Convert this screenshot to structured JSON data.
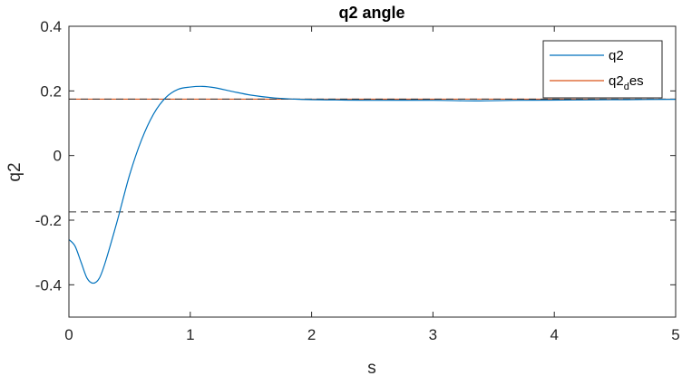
{
  "chart_data": {
    "type": "line",
    "title": "q2 angle",
    "xlabel": "s",
    "ylabel": "q2",
    "xlim": [
      0,
      5
    ],
    "ylim": [
      -0.5,
      0.4
    ],
    "xticks": [
      "0",
      "1",
      "2",
      "3",
      "4",
      "5"
    ],
    "yticks": [
      "-0.4",
      "-0.2",
      "0",
      "0.2",
      "0.4"
    ],
    "grid": false,
    "legend_placement": "top-right",
    "series": [
      {
        "name": "q2",
        "color": "#0072BD",
        "x": [
          0,
          0.05,
          0.1,
          0.15,
          0.2,
          0.25,
          0.3,
          0.4,
          0.5,
          0.6,
          0.7,
          0.8,
          0.9,
          1.0,
          1.1,
          1.2,
          1.35,
          1.5,
          1.7,
          1.9,
          2.2,
          2.5,
          3.0,
          3.35,
          3.7,
          4.2,
          4.6,
          5.0
        ],
        "y": [
          -0.26,
          -0.28,
          -0.33,
          -0.38,
          -0.395,
          -0.38,
          -0.33,
          -0.2,
          -0.06,
          0.05,
          0.13,
          0.18,
          0.205,
          0.212,
          0.214,
          0.21,
          0.198,
          0.187,
          0.178,
          0.174,
          0.172,
          0.171,
          0.171,
          0.169,
          0.171,
          0.172,
          0.173,
          0.174
        ]
      },
      {
        "name_parts": {
          "base": "q2",
          "sub": "d",
          "rest": "es"
        },
        "color": "#D95319",
        "x": [
          0,
          5
        ],
        "y": [
          0.1745,
          0.1745
        ]
      }
    ],
    "reference_lines": [
      {
        "y": 0.1745,
        "color": "#333333",
        "style": "dashed"
      },
      {
        "y": -0.1745,
        "color": "#333333",
        "style": "dashed"
      }
    ]
  }
}
